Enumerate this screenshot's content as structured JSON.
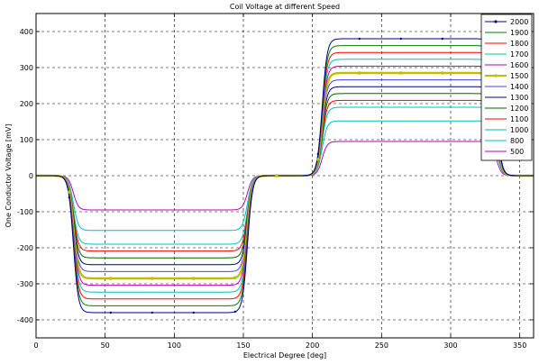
{
  "chart_data": {
    "type": "line",
    "title": "Coil Voltage at different Speed",
    "xlabel": "Electrical Degree [deg]",
    "ylabel": "One Conductor Voltage [mV]",
    "xlim": [
      0,
      360
    ],
    "ylim": [
      -450,
      450
    ],
    "xticks": [
      0,
      50,
      100,
      150,
      200,
      250,
      300,
      350
    ],
    "yticks": [
      -400,
      -300,
      -200,
      -100,
      0,
      100,
      200,
      300,
      400
    ],
    "grid": true,
    "legend_position": "top-right",
    "waveform_transitions_deg": [
      {
        "from": 0,
        "to": -1,
        "center": 27
      },
      {
        "from": -1,
        "to": 0,
        "center": 153
      },
      {
        "from": 0,
        "to": 1,
        "center": 207
      },
      {
        "from": 1,
        "to": 0,
        "center": 333
      }
    ],
    "series": [
      {
        "name": "2000",
        "color": "#00008b",
        "amplitude": 380
      },
      {
        "name": "1900",
        "color": "#008000",
        "amplitude": 361
      },
      {
        "name": "1800",
        "color": "#ff0000",
        "amplitude": 342
      },
      {
        "name": "1700",
        "color": "#00bfbf",
        "amplitude": 323
      },
      {
        "name": "1600",
        "color": "#bf00bf",
        "amplitude": 304
      },
      {
        "name": "1500",
        "color": "#bfbf00",
        "amplitude": 285
      },
      {
        "name": "1400",
        "color": "#4040ff",
        "amplitude": 266
      },
      {
        "name": "1300",
        "color": "#000080",
        "amplitude": 247
      },
      {
        "name": "1200",
        "color": "#006400",
        "amplitude": 228
      },
      {
        "name": "1100",
        "color": "#ff0000",
        "amplitude": 209
      },
      {
        "name": "1000",
        "color": "#00bfbf",
        "amplitude": 190
      },
      {
        "name": "800",
        "color": "#00bfbf",
        "amplitude": 152
      },
      {
        "name": "500",
        "color": "#bf00bf",
        "amplitude": 95
      }
    ]
  }
}
